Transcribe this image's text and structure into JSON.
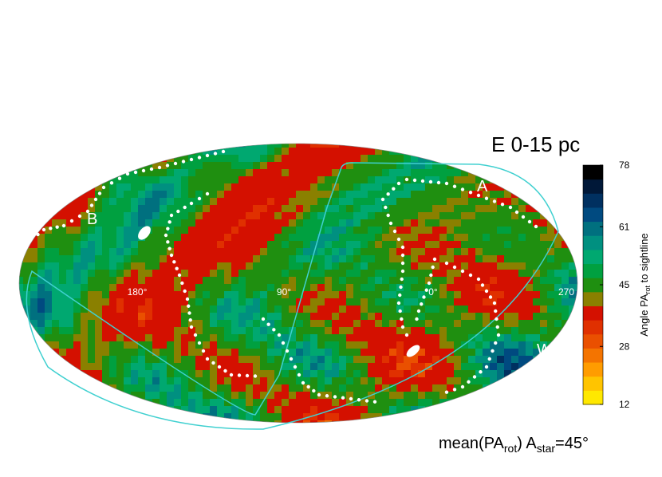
{
  "title": "E  0-15 pc",
  "map": {
    "longitude_labels": [
      "180°",
      "90°",
      "0°",
      "270"
    ],
    "region_labels": [
      "B",
      "A",
      "W"
    ]
  },
  "colorbar": {
    "label": [
      "Angle PA",
      "rot",
      " to sightline"
    ],
    "lim": [
      12,
      78
    ],
    "ticks": [
      12,
      28,
      45,
      61,
      78
    ],
    "colors": [
      "#ffe800",
      "#ffc400",
      "#ff9c00",
      "#f47400",
      "#ea5000",
      "#e03000",
      "#d41000",
      "#8a8000",
      "#1f8f10",
      "#00a040",
      "#00a870",
      "#009080",
      "#00707f",
      "#004a80",
      "#003060",
      "#001838",
      "#000000"
    ]
  },
  "caption": [
    "mean(PA",
    "rot",
    ")  A",
    "star",
    "=45°"
  ]
}
